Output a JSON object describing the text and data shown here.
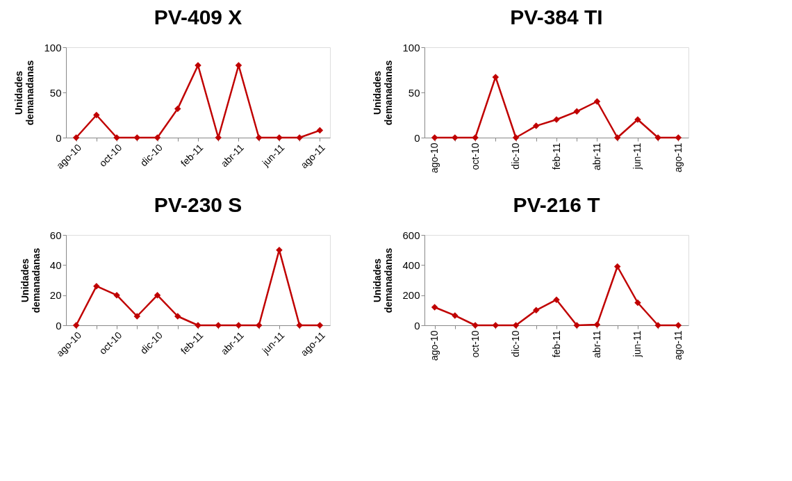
{
  "chart_data": [
    {
      "type": "line",
      "title": "PV-409 X",
      "ylabel": "Unidades\ndemanadanas",
      "categories": [
        "ago-10",
        null,
        "oct-10",
        null,
        "dic-10",
        null,
        "feb-11",
        null,
        "abr-11",
        null,
        "jun-11",
        null,
        "ago-11"
      ],
      "series": [
        {
          "color": "#c00000",
          "values": [
            0,
            25,
            0,
            0,
            0,
            32,
            80,
            0,
            80,
            0,
            0,
            0,
            8
          ]
        }
      ],
      "ylim": [
        0,
        100
      ],
      "yticks": [
        0,
        50,
        100
      ],
      "grid": false,
      "marker": "diamond",
      "line_style": "solid"
    },
    {
      "type": "line",
      "title": "PV-384 TI",
      "ylabel": "Unidades\ndemanadanas",
      "categories": [
        "ago-10",
        null,
        "oct-10",
        null,
        "dic-10",
        null,
        "feb-11",
        null,
        "abr-11",
        null,
        "jun-11",
        null,
        "ago-11"
      ],
      "series": [
        {
          "color": "#c00000",
          "values": [
            0,
            0,
            0,
            67,
            0,
            13,
            20,
            29,
            40,
            0,
            20,
            0,
            0
          ]
        }
      ],
      "ylim": [
        0,
        100
      ],
      "yticks": [
        0,
        50,
        100
      ],
      "grid": false,
      "marker": "diamond",
      "line_style": "solid"
    },
    {
      "type": "line",
      "title": "PV-230 S",
      "ylabel": "Unidades\ndemanadanas",
      "categories": [
        "ago-10",
        null,
        "oct-10",
        null,
        "dic-10",
        null,
        "feb-11",
        null,
        "abr-11",
        null,
        "jun-11",
        null,
        "ago-11"
      ],
      "series": [
        {
          "color": "#c00000",
          "values": [
            0,
            26,
            20,
            6,
            20,
            6,
            0,
            0,
            0,
            0,
            50,
            0,
            0
          ]
        }
      ],
      "ylim": [
        0,
        60
      ],
      "yticks": [
        0,
        20,
        40,
        60
      ],
      "grid": false,
      "marker": "diamond",
      "line_style": "solid"
    },
    {
      "type": "line",
      "title": "PV-216 T",
      "ylabel": "Unidades\ndemanadanas",
      "categories": [
        "ago-10",
        null,
        "oct-10",
        null,
        "dic-10",
        null,
        "feb-11",
        null,
        "abr-11",
        null,
        "jun-11",
        null,
        "ago-11"
      ],
      "series": [
        {
          "color": "#c00000",
          "values": [
            120,
            65,
            0,
            0,
            0,
            100,
            170,
            0,
            5,
            390,
            150,
            0,
            0
          ]
        }
      ],
      "ylim": [
        0,
        600
      ],
      "yticks": [
        0,
        200,
        400,
        600
      ],
      "grid": false,
      "marker": "diamond",
      "line_style": "solid"
    }
  ]
}
